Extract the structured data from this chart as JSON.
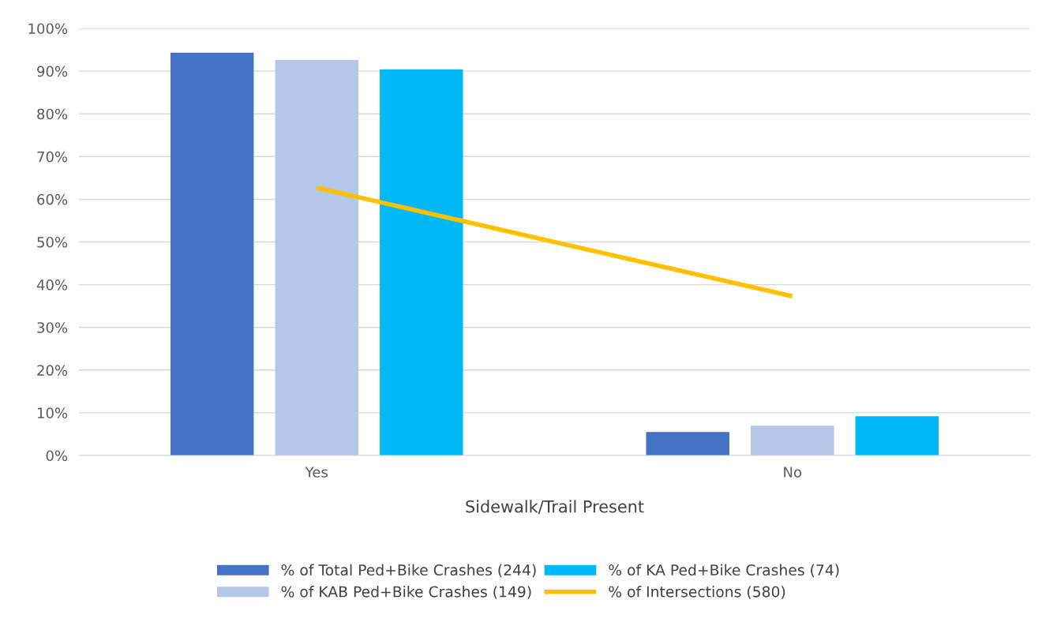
{
  "chart_data": {
    "type": "bar",
    "xlabel": "Sidewalk/Trail Present",
    "categories": [
      "Yes",
      "No"
    ],
    "series": [
      {
        "name": "% of Total Ped+Bike Crashes (244)",
        "color": "#4472c4",
        "values": [
          94.3,
          5.5
        ]
      },
      {
        "name": "% of KAB Ped+Bike Crashes (149)",
        "color": "#b4c7e7",
        "values": [
          92.6,
          7.0
        ]
      },
      {
        "name": "% of KA Ped+Bike Crashes (74)",
        "color": "#00b8f8",
        "values": [
          90.4,
          9.2
        ]
      },
      {
        "name": "% of Intersections (580)",
        "type": "line",
        "color": "#ffc000",
        "values": [
          62.7,
          37.3
        ]
      }
    ],
    "ylim": [
      0,
      100
    ],
    "yticks": [
      {
        "value": 0,
        "label": "0%"
      },
      {
        "value": 10,
        "label": "10%"
      },
      {
        "value": 20,
        "label": "20%"
      },
      {
        "value": 30,
        "label": "30%"
      },
      {
        "value": 40,
        "label": "40%"
      },
      {
        "value": 50,
        "label": "50%"
      },
      {
        "value": 60,
        "label": "60%"
      },
      {
        "value": 70,
        "label": "70%"
      },
      {
        "value": 80,
        "label": "80%"
      },
      {
        "value": 90,
        "label": "90%"
      },
      {
        "value": 100,
        "label": "100%"
      }
    ],
    "grid": "y",
    "legend": "bottom",
    "marker": "none",
    "line_style": "solid"
  }
}
